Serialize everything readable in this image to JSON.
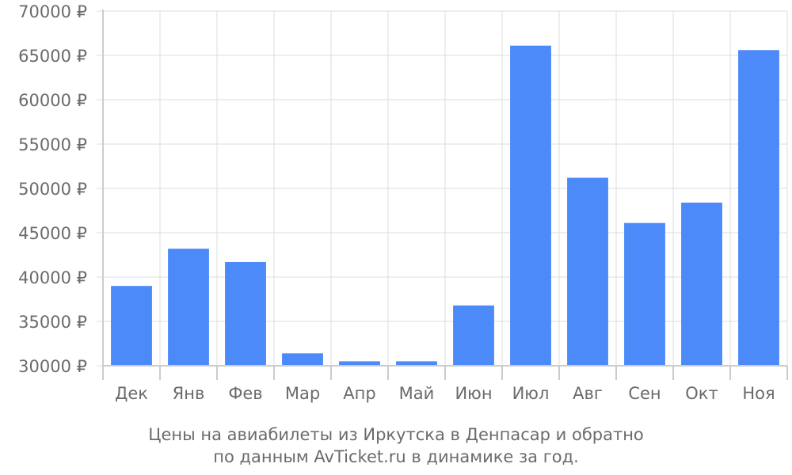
{
  "chart_data": {
    "type": "bar",
    "categories": [
      "Дек",
      "Янв",
      "Фев",
      "Мар",
      "Апр",
      "Май",
      "Июн",
      "Июл",
      "Авг",
      "Сен",
      "Окт",
      "Ноя"
    ],
    "values": [
      39000,
      43200,
      41700,
      31400,
      30500,
      30500,
      36800,
      66100,
      51200,
      46100,
      48400,
      65600
    ],
    "ylim": [
      30000,
      70000
    ],
    "yticks": [
      {
        "value": 30000,
        "label": "30000 ₽"
      },
      {
        "value": 35000,
        "label": "35000 ₽"
      },
      {
        "value": 40000,
        "label": "40000 ₽"
      },
      {
        "value": 45000,
        "label": "45000 ₽"
      },
      {
        "value": 50000,
        "label": "50000 ₽"
      },
      {
        "value": 55000,
        "label": "55000 ₽"
      },
      {
        "value": 60000,
        "label": "60000 ₽"
      },
      {
        "value": 65000,
        "label": "65000 ₽"
      },
      {
        "value": 70000,
        "label": "70000 ₽"
      }
    ],
    "grid": true,
    "bar_color": "#4d8af9"
  },
  "caption": {
    "line1": "Цены на авиабилеты из Иркутска в Денпасар и обратно",
    "line2": "по данным AvTicket.ru в динамике за год."
  }
}
